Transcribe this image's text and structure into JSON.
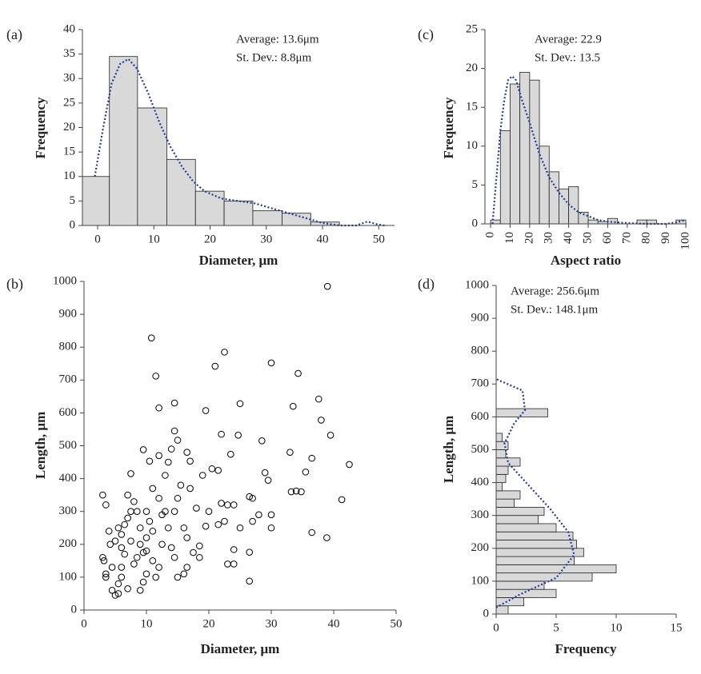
{
  "chart_data": [
    {
      "type": "histogram",
      "panel_label": "(a)",
      "annotations": [
        "Average: 13.6μm",
        "St. Dev.: 8.8μm"
      ],
      "xlabel": "Diameter, μm",
      "ylabel": "Frequency",
      "xlim": [
        -2.7,
        52.8
      ],
      "xticks": [
        0,
        10,
        20,
        30,
        40,
        50
      ],
      "ylim": [
        0,
        40
      ],
      "yticks": [
        0,
        5,
        10,
        15,
        20,
        25,
        30,
        35,
        40
      ],
      "bins": [
        -2.7,
        2.1,
        7.1,
        12.3,
        17.4,
        22.5,
        27.6,
        32.8,
        37.9,
        43.0
      ],
      "values": [
        10,
        34.5,
        24,
        13.5,
        7,
        5,
        3,
        2.5,
        0.7
      ],
      "color": "#d9d9d9",
      "curve": {
        "color": "#1f3c99",
        "x": [
          -0.5,
          1,
          2.5,
          4,
          5.5,
          7,
          9,
          11,
          13,
          15,
          17,
          19,
          22,
          25,
          28,
          31,
          34,
          37,
          40,
          43,
          46,
          48,
          49.5,
          51
        ],
        "values": [
          10,
          20,
          29,
          33,
          34,
          32,
          27,
          21,
          16,
          12,
          9,
          7,
          5.5,
          5,
          4.5,
          3.5,
          2.5,
          1.5,
          0.5,
          0,
          0,
          0.8,
          0.3,
          0
        ]
      }
    },
    {
      "type": "histogram",
      "panel_label": "(c)",
      "annotations": [
        "Average: 22.9",
        "St. Dev.: 13.5"
      ],
      "xlabel": "Aspect ratio",
      "ylabel": "Frequency",
      "xlim": [
        -2.9,
        100.4
      ],
      "xticks": [
        0,
        10,
        20,
        30,
        40,
        50,
        60,
        70,
        80,
        90,
        100
      ],
      "ylim": [
        0,
        25
      ],
      "yticks": [
        0,
        5,
        10,
        15,
        20,
        25
      ],
      "bins": [
        0,
        5,
        10,
        15,
        20,
        25,
        30,
        35,
        40,
        45,
        50,
        55,
        60,
        65,
        70,
        75,
        80,
        85,
        90,
        95,
        100
      ],
      "values": [
        0.5,
        12,
        18,
        19.5,
        18.5,
        10,
        6.7,
        4.5,
        4.8,
        1.5,
        0.5,
        0.3,
        0.7,
        0,
        0,
        0.5,
        0.5,
        0,
        0,
        0.5
      ],
      "color": "#d9d9d9",
      "curve": {
        "color": "#1f3c99",
        "x": [
          1,
          3,
          5,
          7,
          9,
          11,
          13,
          16,
          20,
          25,
          30,
          35,
          40,
          45,
          50,
          55,
          60,
          70,
          80,
          90,
          95,
          100
        ],
        "values": [
          0,
          6,
          12,
          16,
          18.5,
          19,
          18.5,
          16,
          13,
          9,
          6,
          4,
          2.5,
          1.5,
          1,
          0.5,
          0.3,
          0.1,
          0,
          0,
          0.2,
          0.5
        ]
      }
    },
    {
      "type": "scatter",
      "panel_label": "(b)",
      "xlabel": "Diameter, μm",
      "ylabel": "Length, μm",
      "xlim": [
        0,
        50
      ],
      "xticks": [
        0,
        10,
        20,
        30,
        40,
        50
      ],
      "ylim": [
        0,
        1000
      ],
      "yticks": [
        0,
        100,
        200,
        300,
        400,
        500,
        600,
        700,
        800,
        900,
        1000
      ],
      "color": "#000000",
      "x": [
        39,
        10.8,
        22.5,
        11.5,
        21,
        30,
        34.3,
        12,
        19.5,
        14.5,
        25,
        37.6,
        38,
        33.5,
        39.5,
        24.7,
        22,
        28.5,
        14.5,
        15,
        14,
        9.5,
        12,
        16.5,
        36.5,
        33,
        23.5,
        42.5,
        7.5,
        10.5,
        13.5,
        17,
        20.5,
        21.5,
        29,
        29.5,
        35.5,
        41.3,
        38.9,
        36.5,
        27,
        26.5,
        33.2,
        34,
        34.8,
        30,
        30,
        27,
        26.5,
        26.5,
        24,
        23,
        24,
        22,
        23,
        24,
        20,
        19.5,
        18.5,
        16.5,
        16,
        15,
        3,
        3.2,
        3.5,
        3.5,
        3,
        3.5,
        4,
        4.2,
        4.5,
        5,
        5.5,
        5.5,
        6,
        6,
        6.5,
        6,
        6.5,
        7,
        7.5,
        7,
        8,
        8.5,
        9,
        9,
        9.5,
        10,
        10,
        10.5,
        11,
        11,
        11.5,
        12,
        12.5,
        12.5,
        13,
        13.5,
        14,
        14.5,
        14.5,
        15,
        15.5,
        16,
        16.5,
        17,
        18,
        19,
        17.5,
        4.5,
        5,
        5.5,
        6,
        7,
        8,
        9,
        9.5,
        10,
        8.5,
        7.5,
        12,
        13,
        10,
        11,
        18.5,
        21.5,
        25,
        22.5,
        28
      ],
      "values": [
        985,
        828,
        785,
        712,
        742,
        752,
        720,
        615,
        607,
        630,
        628,
        642,
        578,
        620,
        532,
        532,
        535,
        515,
        545,
        517,
        490,
        488,
        470,
        480,
        462,
        480,
        474,
        443,
        415,
        453,
        450,
        453,
        430,
        425,
        418,
        395,
        420,
        336,
        220,
        236,
        340,
        345,
        360,
        362,
        360,
        290,
        250,
        270,
        176,
        88,
        140,
        140,
        184,
        325,
        320,
        320,
        300,
        255,
        195,
        130,
        110,
        100,
        160,
        150,
        110,
        100,
        350,
        320,
        240,
        200,
        60,
        45,
        50,
        80,
        100,
        130,
        170,
        230,
        260,
        280,
        300,
        350,
        330,
        300,
        250,
        200,
        175,
        180,
        220,
        270,
        240,
        150,
        100,
        130,
        200,
        290,
        300,
        250,
        190,
        160,
        300,
        340,
        380,
        250,
        220,
        370,
        310,
        410,
        175,
        130,
        210,
        250,
        190,
        65,
        140,
        60,
        85,
        110,
        160,
        210,
        340,
        410,
        300,
        370,
        160,
        260,
        250,
        270,
        290
      ]
    },
    {
      "type": "histogram",
      "orientation": "horizontal",
      "panel_label": "(d)",
      "annotations": [
        "Average: 256.6μm",
        "St. Dev.: 148.1μm"
      ],
      "xlabel": "Frequency",
      "ylabel": "Length, μm",
      "xlim": [
        0,
        15
      ],
      "xticks": [
        0,
        5,
        10,
        15
      ],
      "ylim": [
        0,
        1000
      ],
      "yticks": [
        0,
        100,
        200,
        300,
        400,
        500,
        600,
        700,
        800,
        900,
        1000
      ],
      "bins": [
        0,
        25,
        50,
        75,
        100,
        125,
        150,
        175,
        200,
        225,
        250,
        275,
        300,
        325,
        350,
        375,
        400,
        425,
        450,
        475,
        500,
        525,
        550,
        575,
        600,
        625
      ],
      "values": [
        1,
        2.3,
        5,
        4,
        8,
        10,
        6.5,
        7.3,
        6.7,
        6.4,
        5,
        3.5,
        4,
        1.5,
        2,
        0.5,
        0.8,
        1,
        2,
        0.8,
        1,
        0.5,
        0,
        0,
        4.3
      ],
      "color": "#d9d9d9",
      "curve": {
        "color": "#1f3c99",
        "x": [
          20,
          60,
          110,
          180,
          250,
          320,
          400,
          460,
          520,
          580,
          620,
          680,
          715
        ],
        "values": [
          0,
          2,
          5,
          6.5,
          6,
          4.5,
          2.5,
          1,
          0.7,
          1.5,
          2.4,
          2.2,
          0
        ]
      }
    }
  ]
}
